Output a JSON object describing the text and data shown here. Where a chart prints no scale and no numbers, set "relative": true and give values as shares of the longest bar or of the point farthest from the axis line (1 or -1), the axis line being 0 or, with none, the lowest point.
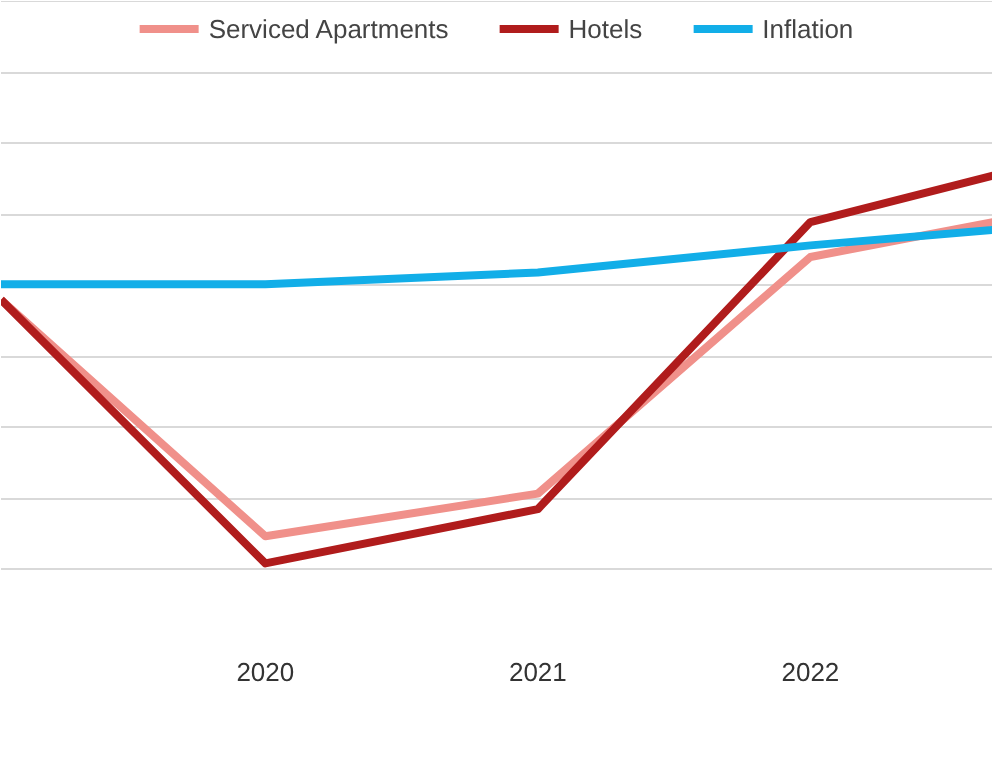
{
  "chart_data": {
    "type": "line",
    "relative": true,
    "x": [
      2019.03,
      2020,
      2021,
      2022,
      2022.67
    ],
    "xlim": [
      2019.03,
      2022.67
    ],
    "xticks": [
      2020,
      2021,
      2022
    ],
    "grid": "y",
    "legend": "top",
    "line_style": "solid",
    "series": [
      {
        "name": "Serviced Apartments",
        "color": "#f0908a",
        "values": [
          0.68,
          0.07,
          0.18,
          0.79,
          0.88
        ]
      },
      {
        "name": "Hotels",
        "color": "#b01c1c",
        "values": [
          0.68,
          0.0,
          0.14,
          0.88,
          1.0
        ]
      },
      {
        "name": "Inflation",
        "color": "#12aee8",
        "values": [
          0.72,
          0.72,
          0.75,
          0.82,
          0.86
        ]
      }
    ]
  }
}
